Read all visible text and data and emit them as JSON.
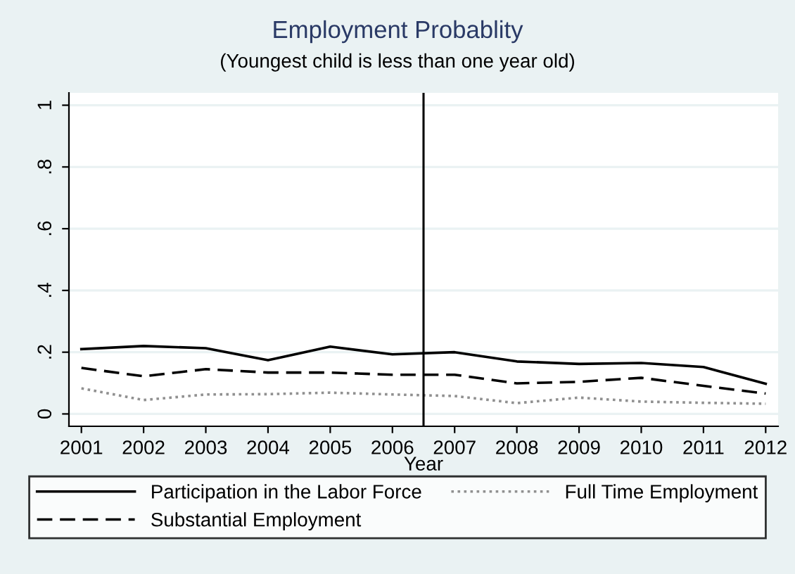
{
  "chart_data": {
    "type": "line",
    "title": "Employment Probablity",
    "subtitle": "(Youngest child is less than one year old)",
    "xlabel": "Year",
    "x": [
      2001,
      2002,
      2003,
      2004,
      2005,
      2006,
      2007,
      2008,
      2009,
      2010,
      2011,
      2012
    ],
    "series": [
      {
        "name": "Participation in the Labor Force",
        "color": "#000000",
        "line_style": "solid",
        "values": [
          0.21,
          0.22,
          0.213,
          0.174,
          0.218,
          0.193,
          0.2,
          0.17,
          0.162,
          0.165,
          0.152,
          0.098
        ]
      },
      {
        "name": "Substantial Employment",
        "color": "#000000",
        "line_style": "dashed",
        "values": [
          0.149,
          0.122,
          0.145,
          0.134,
          0.134,
          0.127,
          0.127,
          0.099,
          0.104,
          0.117,
          0.091,
          0.066
        ]
      },
      {
        "name": "Full Time Employment",
        "color": "#909090",
        "line_style": "dotted",
        "values": [
          0.083,
          0.045,
          0.063,
          0.064,
          0.069,
          0.063,
          0.058,
          0.035,
          0.053,
          0.04,
          0.036,
          0.033
        ]
      }
    ],
    "xlim": [
      2000.8,
      2012.2
    ],
    "xticks": [
      2001,
      2002,
      2003,
      2004,
      2005,
      2006,
      2007,
      2008,
      2009,
      2010,
      2011,
      2012
    ],
    "ylim": [
      -0.04,
      1.04
    ],
    "yticks": [
      0,
      {
        "value": 0.2,
        "label": ".2"
      },
      {
        "value": 0.4,
        "label": ".4"
      },
      {
        "value": 0.6,
        "label": ".6"
      },
      {
        "value": 0.8,
        "label": ".8"
      },
      1
    ],
    "ref_lines": [
      {
        "axis": "x",
        "value": 2006.5,
        "color": "#000000"
      }
    ],
    "grid": "y",
    "legend": "bottom"
  }
}
